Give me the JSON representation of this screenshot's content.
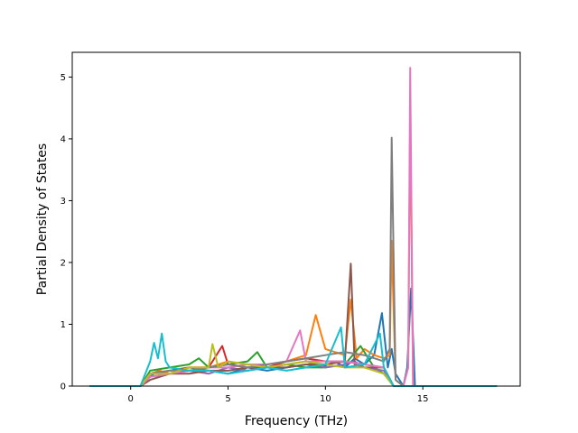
{
  "chart_data": {
    "type": "line",
    "title": "",
    "xlabel": "Frequency (THz)",
    "ylabel": "Partial Density of States",
    "xlim": [
      -3.0,
      20.0
    ],
    "ylim": [
      0,
      5.4
    ],
    "x_ticks": [
      0,
      5,
      10,
      15
    ],
    "y_ticks": [
      0,
      1,
      2,
      3,
      4,
      5
    ],
    "x_tick_labels": [
      "0",
      "5",
      "10",
      "15"
    ],
    "y_tick_labels": [
      "0",
      "1",
      "2",
      "3",
      "4",
      "5"
    ],
    "grid": false,
    "legend": "none",
    "series_count_note": "many overlapping projected DOS curves (approx. 20)",
    "series": [
      {
        "color": "#1f77b4",
        "x": [
          -2.1,
          0.5,
          1.0,
          1.4,
          2.0,
          3.0,
          4.0,
          5.0,
          6.0,
          7.0,
          8.0,
          9.0,
          9.8,
          10.5,
          11.0,
          11.5,
          12.0,
          12.5,
          12.9,
          13.2,
          13.4,
          13.6,
          14.0,
          14.2,
          14.4,
          14.6,
          15.0,
          18.8
        ],
        "y": [
          0,
          0,
          0.15,
          0.25,
          0.2,
          0.3,
          0.25,
          0.2,
          0.3,
          0.25,
          0.3,
          0.35,
          0.3,
          0.4,
          0.3,
          0.45,
          0.35,
          0.5,
          1.18,
          0.3,
          0.6,
          0.2,
          0,
          0.3,
          1.58,
          0,
          0,
          0
        ]
      },
      {
        "color": "#ff7f0e",
        "x": [
          -2.1,
          0.5,
          1.0,
          1.5,
          2.0,
          3.0,
          4.0,
          5.0,
          6.0,
          7.0,
          8.0,
          9.0,
          9.5,
          10.0,
          10.5,
          11.0,
          11.3,
          11.6,
          12.0,
          12.5,
          13.0,
          13.3,
          13.4,
          13.6,
          14.0,
          14.25,
          14.35,
          14.5,
          15.0,
          18.8
        ],
        "y": [
          0,
          0,
          0.2,
          0.25,
          0.2,
          0.3,
          0.3,
          0.4,
          0.35,
          0.3,
          0.4,
          0.5,
          1.15,
          0.6,
          0.55,
          0.5,
          1.4,
          0.45,
          0.6,
          0.5,
          0.45,
          0.5,
          2.35,
          0.1,
          0,
          0.3,
          4.45,
          0,
          0,
          0
        ]
      },
      {
        "color": "#2ca02c",
        "x": [
          -2.1,
          0.5,
          1.0,
          2.0,
          3.0,
          3.5,
          4.0,
          5.0,
          6.0,
          6.5,
          7.0,
          8.0,
          9.0,
          10.0,
          11.0,
          11.8,
          12.5,
          13.0,
          13.5,
          18.8
        ],
        "y": [
          0,
          0,
          0.25,
          0.3,
          0.35,
          0.45,
          0.3,
          0.35,
          0.4,
          0.55,
          0.3,
          0.35,
          0.3,
          0.3,
          0.35,
          0.65,
          0.3,
          0.2,
          0,
          0
        ]
      },
      {
        "color": "#d62728",
        "x": [
          -2.1,
          0.5,
          1.0,
          2.0,
          3.0,
          4.0,
          4.7,
          5.0,
          6.0,
          7.0,
          8.0,
          9.0,
          10.0,
          11.0,
          12.0,
          13.0,
          13.5,
          18.8
        ],
        "y": [
          0,
          0,
          0.2,
          0.25,
          0.3,
          0.3,
          0.65,
          0.35,
          0.3,
          0.3,
          0.4,
          0.45,
          0.4,
          0.4,
          0.35,
          0.3,
          0,
          0
        ]
      },
      {
        "color": "#9467bd",
        "x": [
          -2.1,
          0.5,
          1.0,
          2.0,
          3.0,
          4.0,
          5.0,
          6.0,
          7.0,
          8.0,
          9.0,
          10.0,
          11.0,
          11.5,
          12.0,
          13.0,
          13.5,
          18.8
        ],
        "y": [
          0,
          0,
          0.15,
          0.2,
          0.25,
          0.2,
          0.3,
          0.25,
          0.3,
          0.35,
          0.4,
          0.3,
          0.35,
          0.4,
          0.3,
          0.25,
          0,
          0
        ]
      },
      {
        "color": "#8c564b",
        "x": [
          -2.1,
          0.5,
          1.0,
          2.0,
          3.0,
          4.0,
          5.0,
          6.0,
          7.0,
          8.0,
          9.0,
          10.0,
          11.0,
          11.3,
          11.5,
          12.0,
          13.0,
          13.5,
          18.8
        ],
        "y": [
          0,
          0,
          0.1,
          0.2,
          0.2,
          0.25,
          0.25,
          0.3,
          0.3,
          0.3,
          0.35,
          0.35,
          0.4,
          1.98,
          0.35,
          0.3,
          0.3,
          0,
          0
        ]
      },
      {
        "color": "#e377c2",
        "x": [
          -2.1,
          0.5,
          1.0,
          2.0,
          3.0,
          4.0,
          5.0,
          6.0,
          7.0,
          8.0,
          8.7,
          9.0,
          10.0,
          11.0,
          12.0,
          13.0,
          13.5,
          14.0,
          14.25,
          14.35,
          14.5,
          15.0,
          18.8
        ],
        "y": [
          0,
          0,
          0.15,
          0.2,
          0.25,
          0.3,
          0.3,
          0.35,
          0.35,
          0.4,
          0.9,
          0.4,
          0.4,
          0.4,
          0.35,
          0.3,
          0,
          0,
          0.3,
          5.15,
          0,
          0,
          0
        ]
      },
      {
        "color": "#7f7f7f",
        "x": [
          -2.1,
          0.5,
          1.0,
          2.0,
          3.0,
          4.0,
          5.0,
          6.0,
          7.0,
          8.0,
          9.0,
          10.0,
          11.0,
          12.0,
          13.0,
          13.3,
          13.4,
          13.6,
          14.0,
          18.8
        ],
        "y": [
          0,
          0,
          0.2,
          0.25,
          0.25,
          0.3,
          0.35,
          0.3,
          0.35,
          0.4,
          0.45,
          0.5,
          0.55,
          0.5,
          0.4,
          0.6,
          4.02,
          0.1,
          0,
          0
        ]
      },
      {
        "color": "#bcbd22",
        "x": [
          -2.1,
          0.5,
          1.0,
          2.0,
          3.0,
          4.0,
          4.2,
          4.5,
          5.0,
          6.0,
          7.0,
          8.0,
          9.0,
          10.0,
          11.0,
          12.0,
          13.0,
          13.5,
          18.8
        ],
        "y": [
          0,
          0,
          0.2,
          0.2,
          0.3,
          0.3,
          0.68,
          0.3,
          0.4,
          0.35,
          0.3,
          0.35,
          0.4,
          0.35,
          0.3,
          0.3,
          0.2,
          0,
          0
        ]
      },
      {
        "color": "#17becf",
        "x": [
          -2.1,
          0.5,
          1.0,
          1.2,
          1.4,
          1.6,
          1.8,
          2.0,
          3.0,
          4.0,
          5.0,
          6.0,
          7.0,
          8.0,
          9.0,
          10.0,
          10.8,
          11.0,
          12.0,
          12.8,
          13.0,
          13.5,
          18.8
        ],
        "y": [
          0,
          0,
          0.4,
          0.7,
          0.45,
          0.85,
          0.4,
          0.3,
          0.25,
          0.25,
          0.2,
          0.25,
          0.3,
          0.25,
          0.3,
          0.35,
          0.95,
          0.3,
          0.35,
          0.85,
          0.3,
          0,
          0
        ]
      }
    ]
  }
}
